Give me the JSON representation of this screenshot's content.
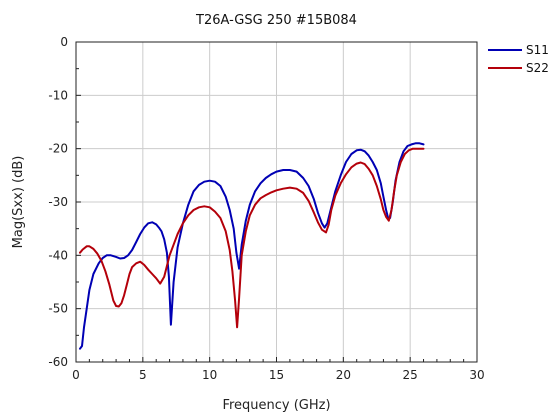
{
  "chart_data": {
    "type": "line",
    "title": "T26A-GSG 250 #15B084",
    "xlabel": "Frequency (GHz)",
    "ylabel": "Mag(Sxx) (dB)",
    "xlim": [
      0,
      30
    ],
    "ylim": [
      -60,
      0
    ],
    "xticks": [
      0,
      5,
      10,
      15,
      20,
      25,
      30
    ],
    "yticks": [
      0,
      -10,
      -20,
      -30,
      -40,
      -50,
      -60
    ],
    "grid": true,
    "legend_position": "top-right",
    "series": [
      {
        "name": "S11",
        "color": "#0000b4",
        "x": [
          0.3,
          0.45,
          0.6,
          0.8,
          1.0,
          1.3,
          1.7,
          2.0,
          2.3,
          2.6,
          3.0,
          3.3,
          3.6,
          3.9,
          4.2,
          4.5,
          4.8,
          5.1,
          5.4,
          5.7,
          6.0,
          6.2,
          6.4,
          6.6,
          6.8,
          6.95,
          7.1,
          7.3,
          7.6,
          8.0,
          8.4,
          8.8,
          9.2,
          9.6,
          10.0,
          10.4,
          10.8,
          11.2,
          11.5,
          11.8,
          12.0,
          12.2,
          12.4,
          12.7,
          13.0,
          13.4,
          13.8,
          14.2,
          14.6,
          15.0,
          15.5,
          16.0,
          16.5,
          17.0,
          17.4,
          17.8,
          18.1,
          18.4,
          18.6,
          18.8,
          19.1,
          19.4,
          19.8,
          20.2,
          20.6,
          21.0,
          21.3,
          21.6,
          21.9,
          22.2,
          22.5,
          22.8,
          23.0,
          23.2,
          23.35,
          23.5,
          23.7,
          23.9,
          24.2,
          24.5,
          24.8,
          25.1,
          25.4,
          25.7,
          26.0
        ],
        "values": [
          -57.5,
          -57.0,
          -53.5,
          -50.0,
          -46.5,
          -43.5,
          -41.5,
          -40.5,
          -40.0,
          -40.0,
          -40.3,
          -40.6,
          -40.5,
          -40.0,
          -39.0,
          -37.5,
          -36.0,
          -34.8,
          -34.0,
          -33.8,
          -34.2,
          -34.8,
          -35.5,
          -37.0,
          -39.5,
          -44.0,
          -53.0,
          -45.0,
          -38.5,
          -34.0,
          -30.5,
          -28.0,
          -26.8,
          -26.2,
          -26.0,
          -26.2,
          -27.0,
          -29.0,
          -31.5,
          -35.0,
          -39.5,
          -42.5,
          -38.0,
          -33.5,
          -30.5,
          -28.0,
          -26.5,
          -25.5,
          -24.8,
          -24.3,
          -24.0,
          -24.0,
          -24.3,
          -25.5,
          -27.0,
          -29.5,
          -32.0,
          -34.0,
          -34.8,
          -34.0,
          -31.0,
          -28.0,
          -25.0,
          -22.5,
          -21.0,
          -20.3,
          -20.2,
          -20.5,
          -21.3,
          -22.5,
          -24.0,
          -26.5,
          -29.0,
          -31.5,
          -33.0,
          -33.0,
          -30.0,
          -26.0,
          -22.5,
          -20.5,
          -19.5,
          -19.2,
          -19.0,
          -19.0,
          -19.2
        ]
      },
      {
        "name": "S22",
        "color": "#b4000a",
        "x": [
          0.3,
          0.5,
          0.8,
          1.0,
          1.3,
          1.6,
          1.9,
          2.2,
          2.5,
          2.8,
          3.0,
          3.2,
          3.4,
          3.6,
          3.8,
          4.0,
          4.2,
          4.5,
          4.8,
          5.1,
          5.4,
          5.7,
          6.0,
          6.3,
          6.6,
          6.8,
          7.0,
          7.3,
          7.6,
          8.0,
          8.4,
          8.8,
          9.2,
          9.6,
          10.0,
          10.4,
          10.8,
          11.2,
          11.5,
          11.7,
          11.9,
          12.05,
          12.2,
          12.4,
          12.7,
          13.0,
          13.4,
          13.8,
          14.2,
          14.6,
          15.0,
          15.5,
          16.0,
          16.5,
          17.0,
          17.4,
          17.8,
          18.1,
          18.4,
          18.7,
          18.9,
          19.1,
          19.4,
          19.8,
          20.2,
          20.6,
          21.0,
          21.3,
          21.6,
          21.9,
          22.2,
          22.5,
          22.8,
          23.0,
          23.2,
          23.4,
          23.6,
          23.8,
          24.0,
          24.3,
          24.6,
          24.9,
          25.2,
          25.5,
          25.8,
          26.0
        ],
        "values": [
          -39.5,
          -38.9,
          -38.3,
          -38.3,
          -38.8,
          -39.7,
          -41.0,
          -43.0,
          -45.5,
          -48.5,
          -49.5,
          -49.6,
          -49.0,
          -47.5,
          -45.5,
          -43.5,
          -42.2,
          -41.5,
          -41.2,
          -41.8,
          -42.7,
          -43.5,
          -44.3,
          -45.3,
          -44.0,
          -42.0,
          -40.0,
          -38.0,
          -36.0,
          -34.0,
          -32.5,
          -31.5,
          -31.0,
          -30.8,
          -31.0,
          -31.8,
          -33.0,
          -35.5,
          -39.0,
          -43.0,
          -48.5,
          -53.5,
          -48.0,
          -40.0,
          -35.5,
          -32.5,
          -30.5,
          -29.3,
          -28.7,
          -28.2,
          -27.8,
          -27.5,
          -27.3,
          -27.5,
          -28.3,
          -29.8,
          -32.0,
          -33.8,
          -35.2,
          -35.7,
          -34.3,
          -31.5,
          -28.8,
          -26.5,
          -24.8,
          -23.5,
          -22.8,
          -22.6,
          -22.9,
          -23.8,
          -25.0,
          -27.0,
          -29.5,
          -31.5,
          -32.8,
          -33.5,
          -31.5,
          -28.0,
          -25.0,
          -22.5,
          -21.0,
          -20.3,
          -20.0,
          -20.0,
          -20.0,
          -20.0
        ]
      }
    ]
  }
}
